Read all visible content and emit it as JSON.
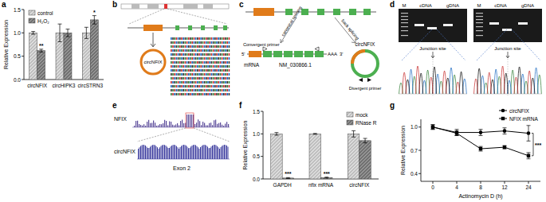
{
  "panel_labels": [
    "a",
    "b",
    "c",
    "d",
    "e",
    "f",
    "g"
  ],
  "chart_data": [
    {
      "type": "bar",
      "ylabel": "Relative Expression",
      "categories": [
        "circNFIX",
        "circHIPK3",
        "circSTRN3"
      ],
      "series": [
        {
          "name": "control",
          "color": "#bdbdbd",
          "values": [
            1.0,
            1.0,
            1.0
          ],
          "errors": [
            0.03,
            0.19,
            0.12
          ]
        },
        {
          "name": "H₂O₂",
          "color": "#6e6e6e",
          "values": [
            0.62,
            1.0,
            1.28
          ],
          "errors": [
            0.03,
            0.08,
            0.09
          ],
          "significance": [
            "**",
            null,
            "*"
          ]
        }
      ],
      "ylim": [
        0,
        1.5
      ],
      "yticks": [
        {
          "value": 0,
          "label": "0.0"
        },
        {
          "value": 0.5,
          "label": "0.5"
        },
        {
          "value": 1,
          "label": "1.0"
        },
        {
          "value": 1.5,
          "label": "1.5"
        }
      ],
      "legend": "upper left"
    },
    {
      "type": "bar",
      "ylabel": "Relative Expression",
      "categories": [
        "GAPDH",
        "nfix mRNA",
        "circNFIX"
      ],
      "series": [
        {
          "name": "mock",
          "color": "#bdbdbd",
          "values": [
            1.0,
            1.0,
            1.0
          ],
          "errors": [
            0.03,
            0.01,
            0.07
          ]
        },
        {
          "name": "RNase R",
          "color": "#6e6e6e",
          "values": [
            0.02,
            0.03,
            0.85
          ],
          "errors": [
            0.01,
            0.01,
            0.05
          ],
          "significance": [
            "***",
            "***",
            null
          ]
        }
      ],
      "ylim": [
        0,
        1.5
      ],
      "yticks": [
        {
          "value": 0,
          "label": "0.0"
        },
        {
          "value": 0.5,
          "label": "0.5"
        },
        {
          "value": 1,
          "label": "1.0"
        },
        {
          "value": 1.5,
          "label": "1.5"
        }
      ],
      "legend": "upper right"
    },
    {
      "type": "line",
      "xlabel": "Actinomycin D (h)",
      "ylabel": "Relative Expression",
      "categories": [
        "0",
        "4",
        "8",
        "12",
        "24"
      ],
      "series": [
        {
          "name": "circNFIX",
          "color": "#000000",
          "marker": "circle",
          "values": [
            1.0,
            0.93,
            0.93,
            0.95,
            0.92
          ],
          "errors": [
            0.03,
            0.04,
            0.04,
            0.04,
            0.1
          ]
        },
        {
          "name": "NFIX mRNA",
          "color": "#000000",
          "marker": "square",
          "values": [
            1.0,
            0.92,
            0.72,
            0.74,
            0.63
          ],
          "errors": [
            0.03,
            0.03,
            0.03,
            0.02,
            0.04
          ]
        }
      ],
      "ylim": [
        0.3,
        1.1
      ],
      "yticks": [
        0.4,
        0.7,
        {
          "value": 1,
          "label": "1.0"
        }
      ],
      "legend": "upper right",
      "annotation": "***"
    }
  ],
  "diagrams": {
    "b": {
      "circle": "circNFIX"
    },
    "c": {
      "splicing": [
        "canonical splicing",
        "back splicing"
      ],
      "convergent_primer": "Convergent primer",
      "divergent_primer": "Divergent primer",
      "five_prime": "5'",
      "three_prime": "3'",
      "poly_a": "AAA",
      "mrna": "mRNA",
      "accession": "NM_030866.1",
      "circle": "circNFIX"
    },
    "d": {
      "gels": [
        {
          "marker": "M",
          "lanes": [
            "cDNA",
            "gDNA"
          ],
          "junction": "Junction site"
        },
        {
          "marker": "M",
          "lanes": [
            "cDNA",
            "gDNA"
          ],
          "junction": "Junction site"
        }
      ]
    },
    "e": {
      "tracks": [
        "NFIX",
        "circNFIX"
      ],
      "exon": "Exon 2"
    }
  }
}
